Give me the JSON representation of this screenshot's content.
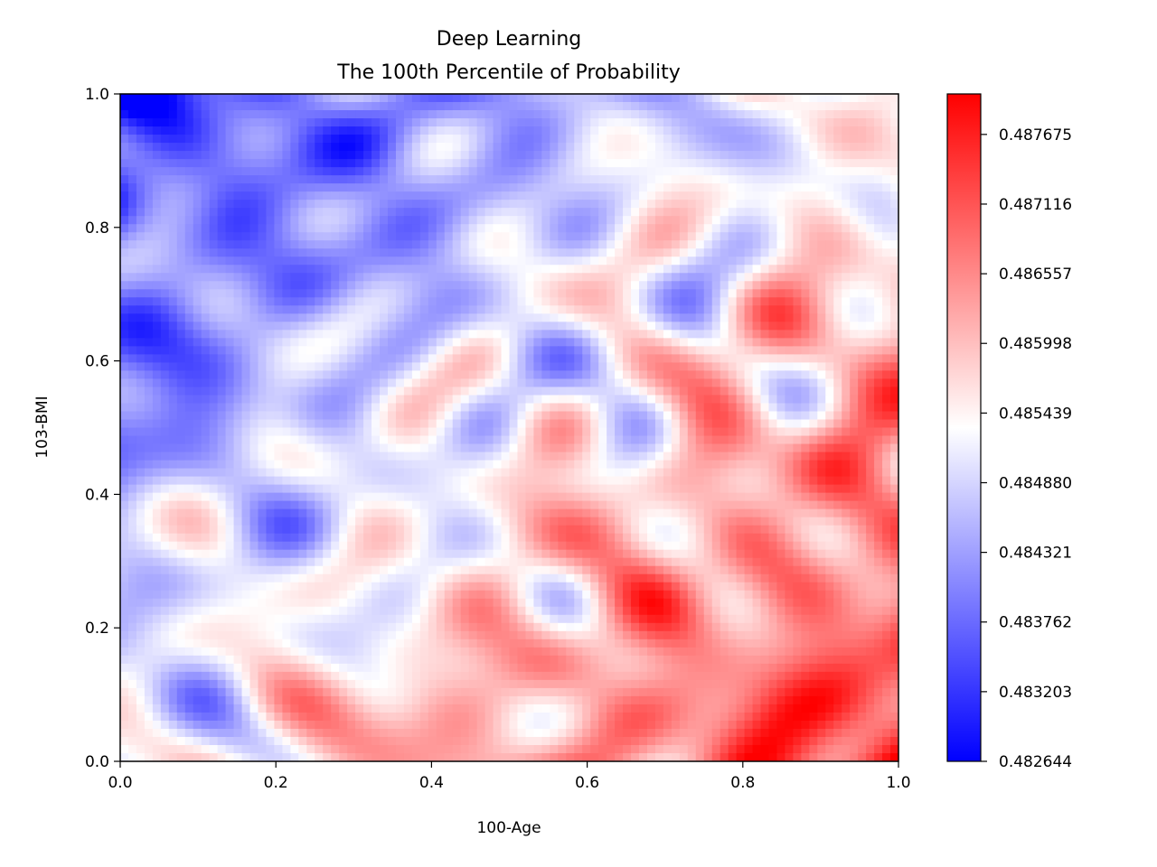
{
  "chart_data": {
    "type": "heatmap",
    "title": "Deep Learning",
    "subtitle": "The 100th Percentile of Probability",
    "xlabel": "100-Age",
    "ylabel": "103-BMI",
    "xlim": [
      0,
      1
    ],
    "ylim": [
      0,
      1
    ],
    "xticks": [
      "0.0",
      "0.2",
      "0.4",
      "0.6",
      "0.8",
      "1.0"
    ],
    "yticks": [
      "0.0",
      "0.2",
      "0.4",
      "0.6",
      "0.8",
      "1.0"
    ],
    "colormap": "bwr",
    "colors": {
      "low": "#0000ff",
      "mid": "#ffffff",
      "high": "#ff0000"
    },
    "colorbar": {
      "min": 0.482644,
      "max": 0.488,
      "ticks": [
        "0.482644",
        "0.483203",
        "0.483762",
        "0.484321",
        "0.484880",
        "0.485439",
        "0.485998",
        "0.486557",
        "0.487116",
        "0.487675"
      ]
    },
    "trend": "values increase from the upper-left (blue, low) toward the lower-right (red, high); fine-grained noisy texture across the field",
    "grid": false
  }
}
